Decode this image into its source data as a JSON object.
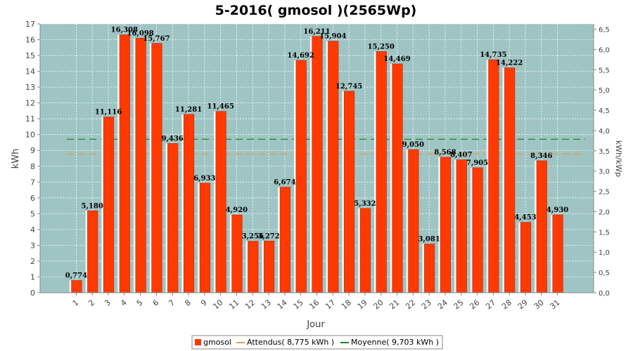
{
  "chart_data": {
    "type": "bar",
    "title": "5-2016( gmosol )(2565Wp)",
    "xlabel": "Jour",
    "ylabel": "kWh",
    "y2label": "kWh/kWp",
    "ylim": [
      0,
      17
    ],
    "y2lim": [
      0,
      6.63
    ],
    "yticks": [
      "0",
      "1",
      "2",
      "3",
      "4",
      "5",
      "6",
      "7",
      "8",
      "9",
      "10",
      "11",
      "12",
      "13",
      "14",
      "15",
      "16",
      "17"
    ],
    "y2ticks": [
      "0,0",
      "0,5",
      "1,0",
      "1,5",
      "2,0",
      "2,5",
      "3,0",
      "3,5",
      "4,0",
      "4,5",
      "5,0",
      "5,5",
      "6,0",
      "6,5"
    ],
    "categories": [
      "1",
      "2",
      "3",
      "4",
      "5",
      "6",
      "7",
      "8",
      "9",
      "10",
      "11",
      "12",
      "13",
      "14",
      "15",
      "16",
      "17",
      "18",
      "19",
      "20",
      "21",
      "22",
      "23",
      "24",
      "25",
      "26",
      "27",
      "28",
      "29",
      "30",
      "31"
    ],
    "values": [
      0.774,
      5.18,
      11.116,
      16.308,
      16.098,
      15.767,
      9.436,
      11.281,
      6.933,
      11.465,
      4.92,
      3.256,
      3.272,
      6.674,
      14.692,
      16.211,
      15.904,
      12.745,
      5.332,
      15.25,
      14.469,
      9.05,
      3.081,
      8.568,
      8.407,
      7.905,
      14.735,
      14.222,
      4.453,
      8.346,
      4.93
    ],
    "value_labels": [
      "0,774",
      "5,180",
      "11,116",
      "16,308",
      "16,098",
      "15,767",
      "9,436",
      "11,281",
      "6,933",
      "11,465",
      "4,920",
      "3,256",
      "3,272",
      "6,674",
      "14,692",
      "16,211",
      "15,904",
      "12,745",
      "5,332",
      "15,250",
      "14,469",
      "9,050",
      "3,081",
      "8,568",
      "8,407",
      "7,905",
      "14,735",
      "14,222",
      "4,453",
      "8,346",
      "4,930"
    ],
    "reference_lines": [
      {
        "name": "Attendus",
        "value": 8.775,
        "color": "#e8a040"
      },
      {
        "name": "Moyenne",
        "value": 9.703,
        "color": "#1a8a1a"
      }
    ],
    "legend": {
      "position": "bottom",
      "entries": [
        "gmosol",
        "Attendus( 8,775 kWh )",
        "Moyenne( 9,703 kWh )"
      ]
    },
    "grid": true,
    "colors": {
      "bar": "#ff3a00",
      "plot_bg": "#9fc4c4",
      "grid": "#ffffff"
    }
  }
}
